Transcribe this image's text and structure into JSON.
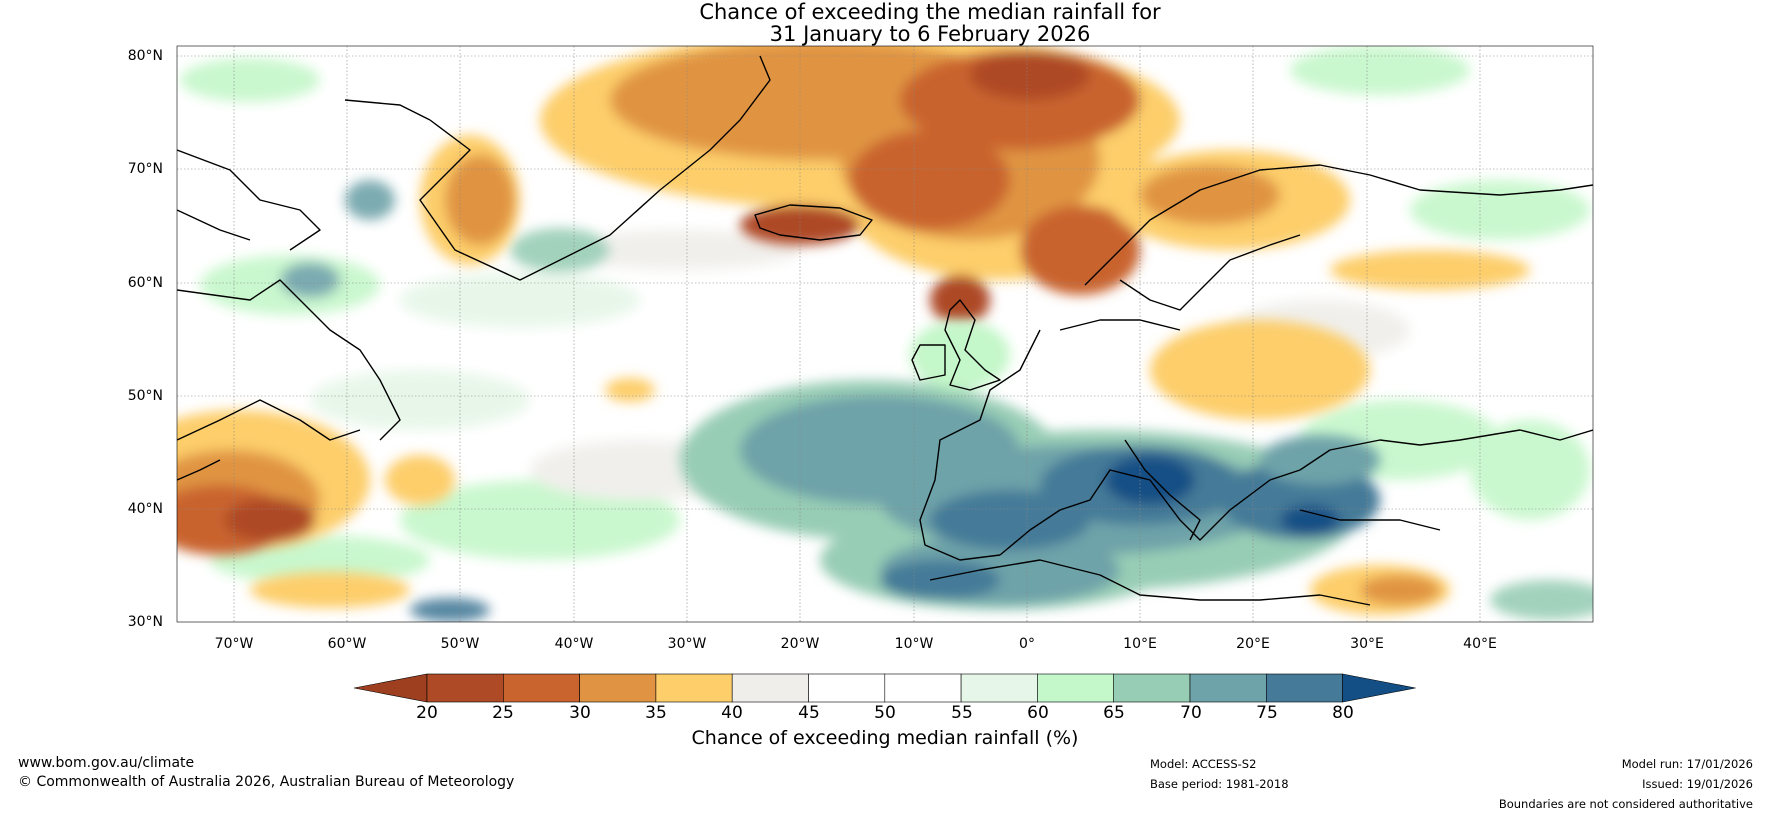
{
  "title": {
    "line1": "Chance of exceeding the median rainfall for",
    "line2": "31 January to 6 February 2026"
  },
  "map": {
    "lat_labels": [
      "80°N",
      "70°N",
      "60°N",
      "50°N",
      "40°N",
      "30°N"
    ],
    "lon_labels": [
      "70°W",
      "60°W",
      "50°W",
      "40°W",
      "30°W",
      "20°W",
      "10°W",
      "0°",
      "10°E",
      "20°E",
      "30°E",
      "40°E"
    ],
    "lat_range": [
      30,
      81
    ],
    "lon_range": [
      -75,
      50
    ]
  },
  "colorbar": {
    "ticks": [
      "20",
      "25",
      "30",
      "35",
      "40",
      "45",
      "50",
      "55",
      "60",
      "65",
      "70",
      "75",
      "80"
    ],
    "colors": [
      "#9e3f20",
      "#ae4a26",
      "#c9642e",
      "#e09443",
      "#fdce6a",
      "#efeeea",
      "#ffffff",
      "#ffffff",
      "#e6f6e8",
      "#c4f7c9",
      "#98cdb5",
      "#6ea3a9",
      "#457a98",
      "#134f85"
    ],
    "label": "Chance of exceeding median rainfall (%)"
  },
  "footer": {
    "website": "www.bom.gov.au/climate",
    "copyright": "© Commonwealth of Australia 2026, Australian Bureau of Meteorology",
    "model": "Model: ACCESS-S2",
    "base_period": "Base period: 1981-2018",
    "model_run": "Model run: 17/01/2026",
    "issued": "Issued: 19/01/2026",
    "disclaimer": "Boundaries are not considered authoritative"
  }
}
